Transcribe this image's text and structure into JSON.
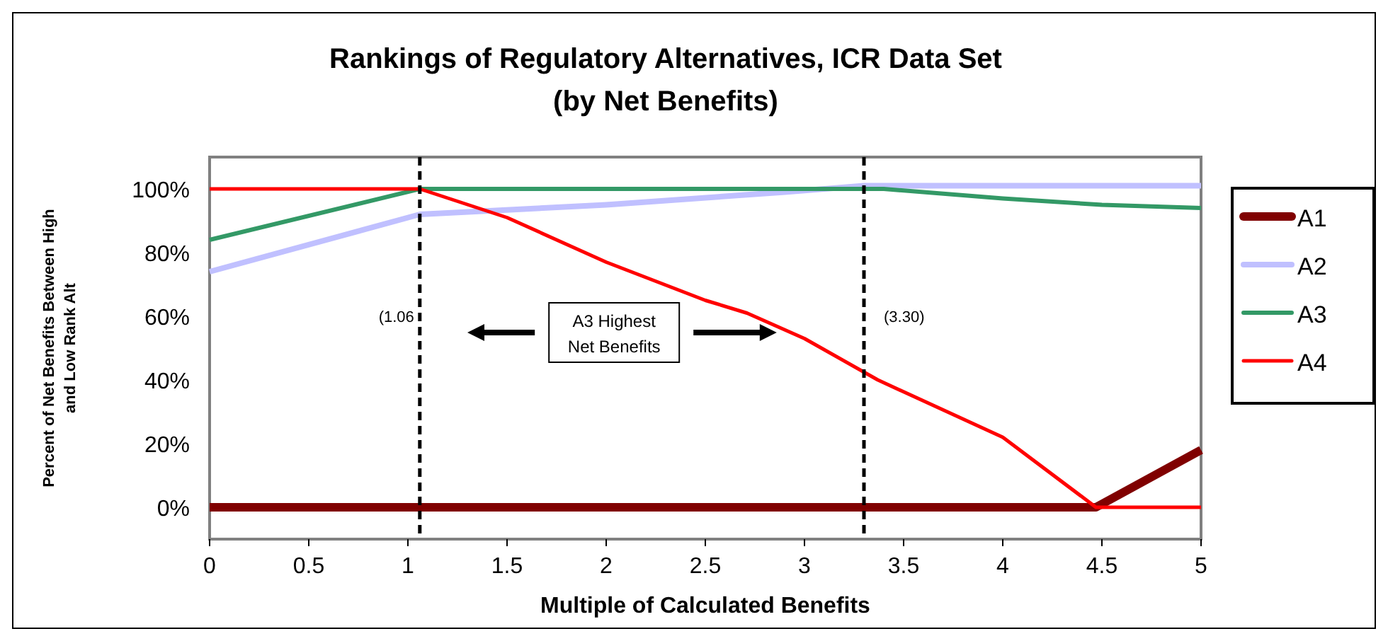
{
  "chart_data": {
    "type": "line",
    "title": "Rankings of Regulatory Alternatives, ICR Data Set",
    "subtitle": "(by Net Benefits)",
    "xlabel": "Multiple of Calculated Benefits",
    "ylabel": "Percent of Net Benefits Between High and Low Rank Alt",
    "xlim": [
      0,
      5
    ],
    "xticks": [
      0,
      0.5,
      1,
      1.5,
      2,
      2.5,
      3,
      3.5,
      4,
      4.5,
      5
    ],
    "ylim": [
      -10,
      110
    ],
    "yticks": [
      {
        "value": 0,
        "label": "0%"
      },
      {
        "value": 20,
        "label": "20%"
      },
      {
        "value": 40,
        "label": "40%"
      },
      {
        "value": 60,
        "label": "60%"
      },
      {
        "value": 80,
        "label": "80%"
      },
      {
        "value": 100,
        "label": "100%"
      }
    ],
    "grid": false,
    "legend": "right",
    "marker": "none",
    "line_style": "solid",
    "series": [
      {
        "name": "A1",
        "color": "#800000",
        "x": [
          0,
          4.47,
          5
        ],
        "values": [
          0,
          0,
          18
        ]
      },
      {
        "name": "A2",
        "color": "#c0c0ff",
        "x": [
          0,
          1.06,
          2,
          2.9,
          3.3,
          5
        ],
        "values": [
          74,
          92,
          95,
          99,
          101,
          101
        ]
      },
      {
        "name": "A3",
        "color": "#339966",
        "x": [
          0,
          1.06,
          3.4,
          4,
          4.5,
          5
        ],
        "values": [
          84,
          100,
          100,
          97,
          95,
          94
        ]
      },
      {
        "name": "A4",
        "color": "#ff0000",
        "x": [
          0,
          1.06,
          1.5,
          2,
          2.5,
          2.71,
          3,
          3.37,
          4,
          4.47,
          5
        ],
        "values": [
          100,
          100,
          91,
          77,
          65,
          61,
          53,
          40,
          22,
          0,
          0
        ]
      }
    ],
    "ref_lines": [
      {
        "axis": "x",
        "value": 1.06,
        "label": "(1.06",
        "color": "#000000",
        "line_style": "dashed"
      },
      {
        "axis": "x",
        "value": 3.3,
        "label": "(3.30)",
        "color": "#000000",
        "line_style": "dashed"
      }
    ],
    "annotations": [
      "A3 Highest Net Benefits"
    ]
  }
}
